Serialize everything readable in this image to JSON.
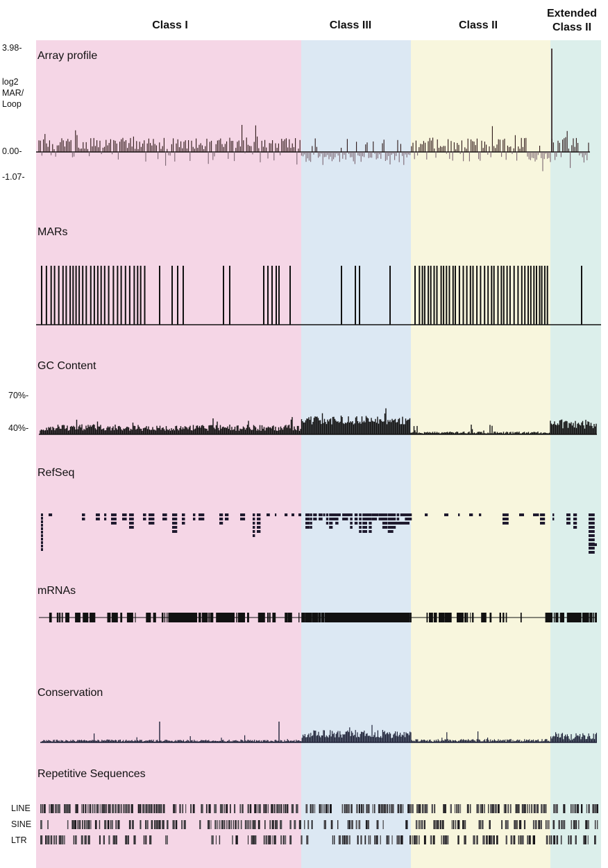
{
  "figure": {
    "regions": [
      {
        "id": "class1",
        "label": "Class I",
        "color": "#f5d6e6"
      },
      {
        "id": "class3",
        "label": "Class III",
        "color": "#dce8f3"
      },
      {
        "id": "class2",
        "label": "Class II",
        "color": "#f8f6dd"
      },
      {
        "id": "ext",
        "label": "Extended\nClass II",
        "color": "#dcefeb"
      }
    ],
    "tracks": {
      "array_profile": {
        "title": "Array profile",
        "ylabel": "log2\nMAR/\nLoop",
        "ticks": [
          "3.98-",
          "0.00-",
          "-1.07-"
        ],
        "ymax": 3.98,
        "ymin": -1.07
      },
      "mars": {
        "title": "MARs"
      },
      "gc_content": {
        "title": "GC Content",
        "ticks": [
          "70%-",
          "40%-"
        ]
      },
      "refseq": {
        "title": "RefSeq"
      },
      "mrnas": {
        "title": "mRNAs"
      },
      "conservation": {
        "title": "Conservation"
      },
      "repetitive": {
        "title": "Repetitive Sequences",
        "rows": [
          "LINE",
          "SINE",
          "LTR"
        ]
      }
    },
    "colors": {
      "positive_bar": "#2a1414",
      "negative_bar": "#7a6470",
      "gene": "#1f1a2e",
      "conservation": "#1e2238"
    }
  }
}
